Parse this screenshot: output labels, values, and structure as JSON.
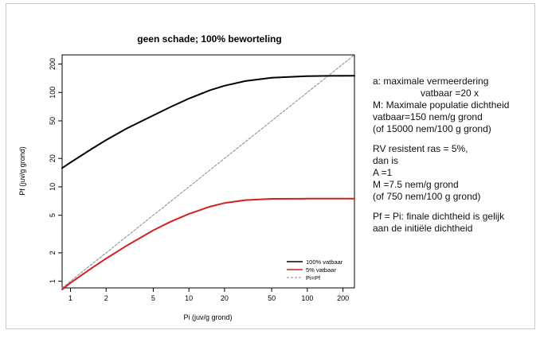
{
  "chart_data": {
    "type": "line",
    "title": "geen schade; 100% beworteling",
    "xlabel": "Pi (juv/g grond)",
    "ylabel": "Pf (juv/g grond)",
    "x_scale": "log",
    "y_scale": "log",
    "xlim": [
      0.85,
      250
    ],
    "ylim": [
      0.85,
      250
    ],
    "x_ticks": [
      1,
      2,
      5,
      10,
      20,
      50,
      100,
      200
    ],
    "x_tick_labels": [
      "1",
      "2",
      "5",
      "10",
      "20",
      "50",
      "100",
      "200"
    ],
    "y_ticks": [
      1,
      2,
      5,
      10,
      20,
      50,
      100,
      200
    ],
    "y_tick_labels": [
      "1",
      "2",
      "5",
      "10",
      "20",
      "50",
      "100",
      "200"
    ],
    "grid": false,
    "legend_position": "bottom-right",
    "series": [
      {
        "name": "100% vatbaar",
        "color": "#000000",
        "style": "solid",
        "x": [
          0.85,
          1,
          1.5,
          2,
          3,
          5,
          7,
          10,
          15,
          20,
          30,
          50,
          100,
          150,
          250
        ],
        "y": [
          15.8,
          18.1,
          25.1,
          31.3,
          41.6,
          57.1,
          70.2,
          86.1,
          105.3,
          117.8,
          132.0,
          143.2,
          148.9,
          149.8,
          150.0
        ]
      },
      {
        "name": "5% vatbaar",
        "color": "#d62020",
        "style": "solid",
        "x": [
          0.85,
          1,
          1.5,
          2,
          3,
          5,
          7,
          10,
          15,
          20,
          30,
          50,
          100,
          150,
          250
        ],
        "y": [
          0.82,
          0.96,
          1.37,
          1.74,
          2.39,
          3.46,
          4.27,
          5.17,
          6.16,
          6.73,
          7.24,
          7.47,
          7.5,
          7.5,
          7.5
        ]
      },
      {
        "name": "Pi=Pf",
        "color": "#888888",
        "style": "dashed",
        "x": [
          0.85,
          250
        ],
        "y": [
          0.85,
          250
        ]
      }
    ]
  },
  "notes": {
    "l1": "a: maximale vermeerdering",
    "l2": "vatbaar =20 x",
    "l3": "M: Maximale populatie dichtheid",
    "l4": "vatbaar=150 nem/g grond",
    "l5": "(of 15000 nem/100 g grond)",
    "l6": "RV resistent ras = 5%,",
    "l7": "dan is",
    "l8": "A =1",
    "l9": "M =7.5 nem/g grond",
    "l10": "(of 750 nem/100 g grond)",
    "l11": "Pf = Pi: finale dichtheid is gelijk",
    "l12": "aan de initiële dichtheid"
  }
}
